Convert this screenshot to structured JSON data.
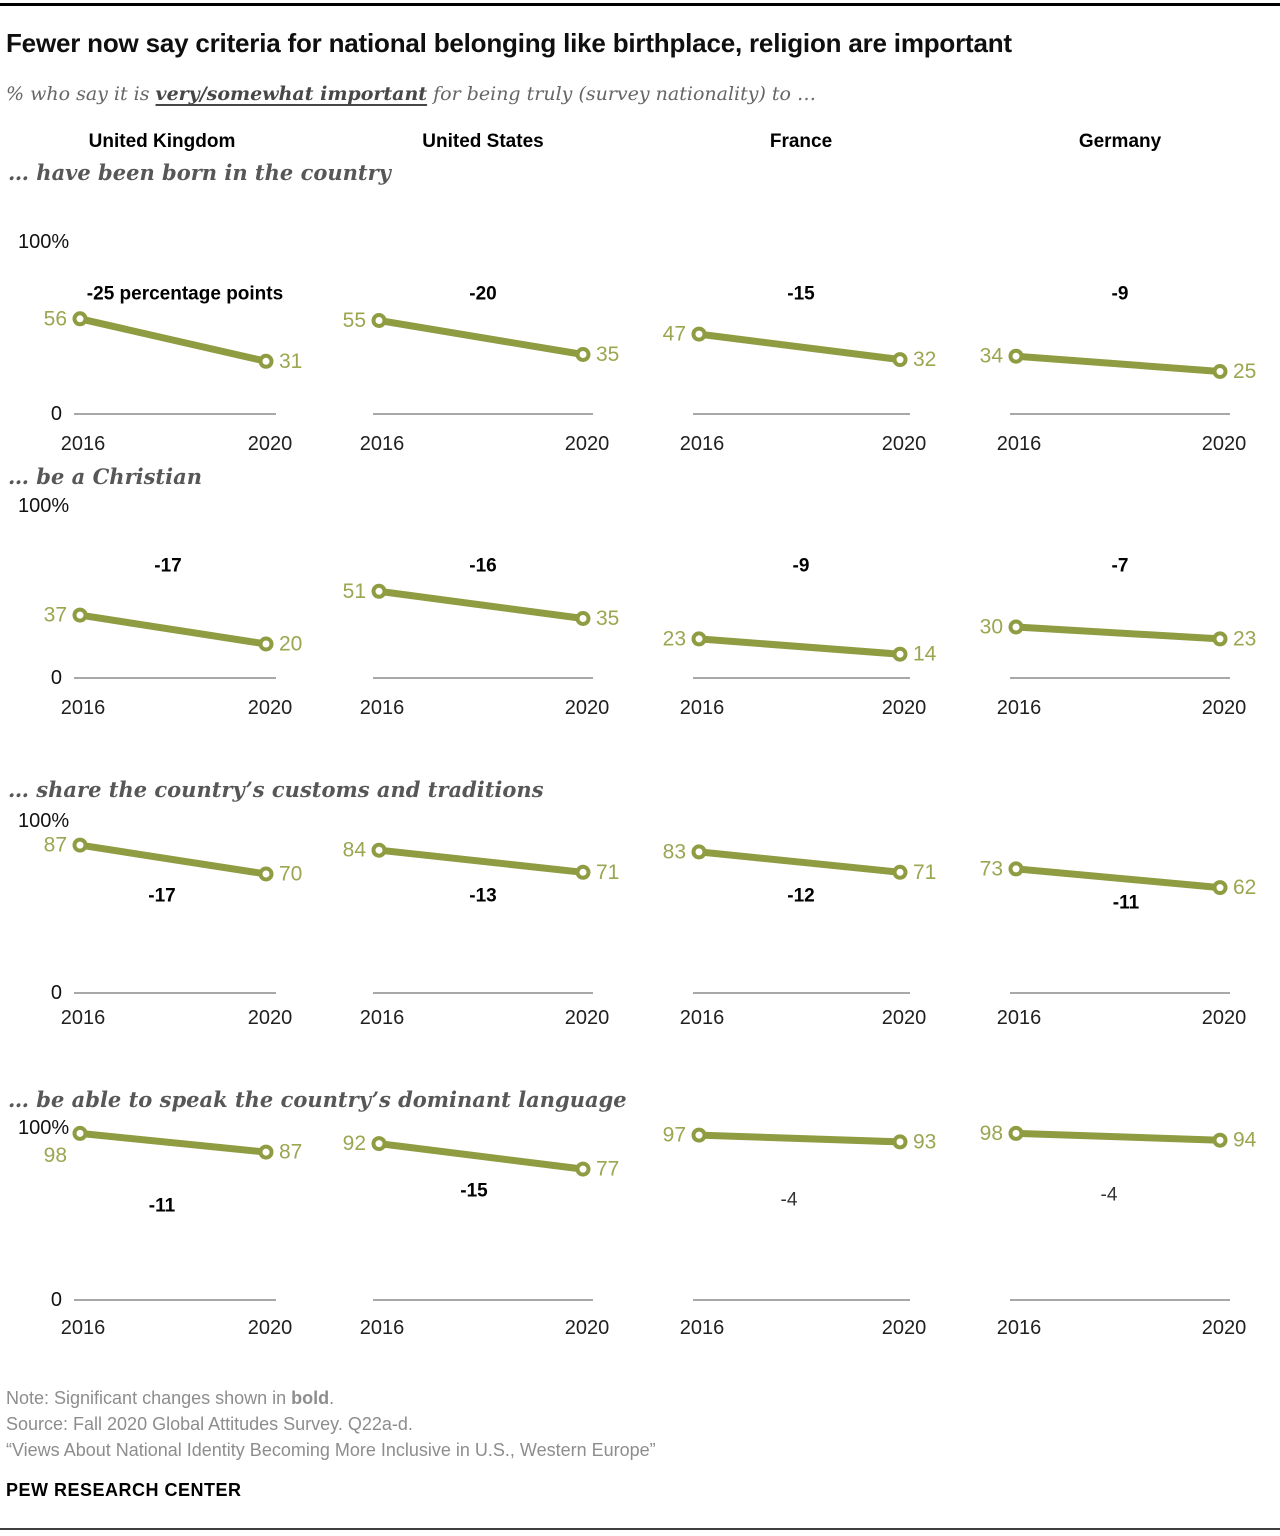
{
  "page": {
    "title": "Fewer now say criteria for national belonging like birthplace, religion are important",
    "subtitle": {
      "prefix": "% who say it is ",
      "emphasis": "very/somewhat important",
      "suffix": " for being truly (survey nationality) to …"
    }
  },
  "columns": [
    "United Kingdom",
    "United States",
    "France",
    "Germany"
  ],
  "colors": {
    "line": "#8F9C41",
    "value_label": "#9CA550",
    "axis": "#A8A8A8",
    "change_significant": "#000000",
    "change_not_significant": "#333333",
    "section_label": "#575757"
  },
  "chart_data": {
    "type": "line",
    "x_ticks": [
      "2016",
      "2020"
    ],
    "ylim": [
      0,
      100
    ],
    "y_top_label": "100%",
    "y_zero_label": "0",
    "legend": "none",
    "grid": false,
    "sections": [
      {
        "label": "…  have been born in the country",
        "series": [
          {
            "country": "United Kingdom",
            "values": [
              56,
              31
            ],
            "change": "-25 percentage points",
            "significant": true
          },
          {
            "country": "United States",
            "values": [
              55,
              35
            ],
            "change": "-20",
            "significant": true
          },
          {
            "country": "France",
            "values": [
              47,
              32
            ],
            "change": "-15",
            "significant": true
          },
          {
            "country": "Germany",
            "values": [
              34,
              25
            ],
            "change": "-9",
            "significant": true
          }
        ]
      },
      {
        "label": "… be a Christian",
        "series": [
          {
            "country": "United Kingdom",
            "values": [
              37,
              20
            ],
            "change": "-17",
            "significant": true
          },
          {
            "country": "United States",
            "values": [
              51,
              35
            ],
            "change": "-16",
            "significant": true
          },
          {
            "country": "France",
            "values": [
              23,
              14
            ],
            "change": "-9",
            "significant": true
          },
          {
            "country": "Germany",
            "values": [
              30,
              23
            ],
            "change": "-7",
            "significant": true
          }
        ]
      },
      {
        "label": "… share the country’s customs and traditions",
        "series": [
          {
            "country": "United Kingdom",
            "values": [
              87,
              70
            ],
            "change": "-17",
            "significant": true
          },
          {
            "country": "United States",
            "values": [
              84,
              71
            ],
            "change": "-13",
            "significant": true
          },
          {
            "country": "France",
            "values": [
              83,
              71
            ],
            "change": "-12",
            "significant": true
          },
          {
            "country": "Germany",
            "values": [
              73,
              62
            ],
            "change": "-11",
            "significant": true
          }
        ]
      },
      {
        "label": "… be able to speak the country’s dominant language",
        "series": [
          {
            "country": "United Kingdom",
            "values": [
              98,
              87
            ],
            "change": "-11",
            "significant": true
          },
          {
            "country": "United States",
            "values": [
              92,
              77
            ],
            "change": "-15",
            "significant": true
          },
          {
            "country": "France",
            "values": [
              97,
              93
            ],
            "change": "-4",
            "significant": false
          },
          {
            "country": "Germany",
            "values": [
              98,
              94
            ],
            "change": "-4",
            "significant": false
          }
        ]
      }
    ]
  },
  "footer": {
    "note_prefix": "Note: Significant changes shown in ",
    "note_bold": "bold",
    "note_suffix": ".",
    "source": "Source: Fall 2020 Global Attitudes Survey. Q22a-d.",
    "report": "“Views About National Identity Becoming More Inclusive in U.S., Western Europe”",
    "brand": "PEW RESEARCH CENTER"
  }
}
